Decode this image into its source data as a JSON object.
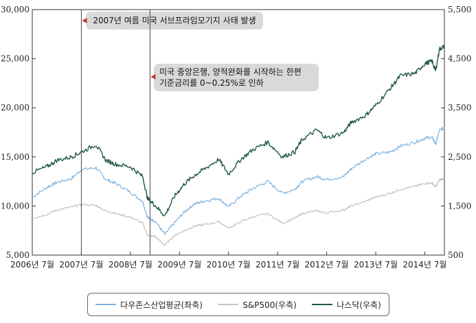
{
  "chart_data": {
    "type": "line",
    "left_axis": {
      "ticks": [
        "5,000",
        "10,000",
        "15,000",
        "20,000",
        "25,000",
        "30,000"
      ],
      "range": [
        5000,
        30000
      ]
    },
    "right_axis": {
      "ticks": [
        "500",
        "1,500",
        "2,500",
        "3,500",
        "4,500",
        "5,500"
      ],
      "range": [
        500,
        5500
      ]
    },
    "x_ticks": [
      "2006년 7월",
      "2007년 7월",
      "2008년 7월",
      "2009년 7월",
      "2010년 7월",
      "2011년 7월",
      "2012년 7월",
      "2013년 7월",
      "2014년 7월"
    ],
    "x_range": [
      2006.5,
      2014.9
    ],
    "annotations": [
      {
        "lines": [
          "2007년 여름 미국 서브프라임모기지 사태 발생"
        ],
        "x": 2007.5
      },
      {
        "lines": [
          "미국 중앙은행, 양적완화를 시작하는 한편",
          "기준금리를 0~0.25%로 인하"
        ],
        "x": 2008.9
      }
    ],
    "series": [
      {
        "name": "다우존스산업평균(좌축)",
        "axis": "left",
        "color": "#7fb2dd",
        "points": [
          [
            2006.5,
            10900
          ],
          [
            2006.8,
            11900
          ],
          [
            2007.0,
            12400
          ],
          [
            2007.3,
            12800
          ],
          [
            2007.5,
            13700
          ],
          [
            2007.8,
            13900
          ],
          [
            2008.0,
            12700
          ],
          [
            2008.2,
            12300
          ],
          [
            2008.5,
            11400
          ],
          [
            2008.75,
            10500
          ],
          [
            2008.85,
            8800
          ],
          [
            2009.0,
            8500
          ],
          [
            2009.2,
            7100
          ],
          [
            2009.4,
            8300
          ],
          [
            2009.6,
            9400
          ],
          [
            2009.8,
            10200
          ],
          [
            2010.0,
            10500
          ],
          [
            2010.3,
            10800
          ],
          [
            2010.5,
            9900
          ],
          [
            2010.75,
            11000
          ],
          [
            2011.0,
            11800
          ],
          [
            2011.3,
            12500
          ],
          [
            2011.6,
            11300
          ],
          [
            2011.85,
            11700
          ],
          [
            2012.0,
            12500
          ],
          [
            2012.3,
            13000
          ],
          [
            2012.5,
            12700
          ],
          [
            2012.85,
            13000
          ],
          [
            2013.0,
            13800
          ],
          [
            2013.3,
            14800
          ],
          [
            2013.5,
            15300
          ],
          [
            2013.8,
            15500
          ],
          [
            2014.0,
            16100
          ],
          [
            2014.3,
            16500
          ],
          [
            2014.5,
            16900
          ],
          [
            2014.65,
            17000
          ],
          [
            2014.72,
            16300
          ],
          [
            2014.8,
            17700
          ],
          [
            2014.9,
            18000
          ]
        ]
      },
      {
        "name": "S&P500(우축)",
        "axis": "right",
        "color": "#c4c4c4",
        "points": [
          [
            2006.5,
            1250
          ],
          [
            2006.8,
            1330
          ],
          [
            2007.0,
            1420
          ],
          [
            2007.3,
            1480
          ],
          [
            2007.5,
            1530
          ],
          [
            2007.8,
            1510
          ],
          [
            2008.0,
            1400
          ],
          [
            2008.2,
            1350
          ],
          [
            2008.5,
            1270
          ],
          [
            2008.75,
            1150
          ],
          [
            2008.85,
            900
          ],
          [
            2009.0,
            880
          ],
          [
            2009.2,
            700
          ],
          [
            2009.4,
            900
          ],
          [
            2009.6,
            1000
          ],
          [
            2009.8,
            1090
          ],
          [
            2010.0,
            1120
          ],
          [
            2010.3,
            1180
          ],
          [
            2010.5,
            1050
          ],
          [
            2010.75,
            1180
          ],
          [
            2011.0,
            1280
          ],
          [
            2011.3,
            1340
          ],
          [
            2011.6,
            1150
          ],
          [
            2011.85,
            1250
          ],
          [
            2012.0,
            1350
          ],
          [
            2012.3,
            1400
          ],
          [
            2012.5,
            1360
          ],
          [
            2012.85,
            1420
          ],
          [
            2013.0,
            1500
          ],
          [
            2013.3,
            1600
          ],
          [
            2013.5,
            1680
          ],
          [
            2013.8,
            1760
          ],
          [
            2014.0,
            1840
          ],
          [
            2014.3,
            1900
          ],
          [
            2014.5,
            1960
          ],
          [
            2014.65,
            1970
          ],
          [
            2014.72,
            1880
          ],
          [
            2014.8,
            2030
          ],
          [
            2014.9,
            2060
          ]
        ]
      },
      {
        "name": "나스닥(우축)",
        "axis": "right",
        "color": "#1f5a3c",
        "points": [
          [
            2006.5,
            2180
          ],
          [
            2006.8,
            2300
          ],
          [
            2007.0,
            2430
          ],
          [
            2007.3,
            2500
          ],
          [
            2007.5,
            2600
          ],
          [
            2007.8,
            2750
          ],
          [
            2008.0,
            2430
          ],
          [
            2008.2,
            2350
          ],
          [
            2008.5,
            2300
          ],
          [
            2008.75,
            2100
          ],
          [
            2008.85,
            1650
          ],
          [
            2009.0,
            1520
          ],
          [
            2009.2,
            1300
          ],
          [
            2009.4,
            1700
          ],
          [
            2009.6,
            1950
          ],
          [
            2009.8,
            2120
          ],
          [
            2010.0,
            2250
          ],
          [
            2010.3,
            2450
          ],
          [
            2010.5,
            2150
          ],
          [
            2010.75,
            2450
          ],
          [
            2011.0,
            2650
          ],
          [
            2011.3,
            2800
          ],
          [
            2011.6,
            2500
          ],
          [
            2011.85,
            2600
          ],
          [
            2012.0,
            2850
          ],
          [
            2012.3,
            3050
          ],
          [
            2012.5,
            2880
          ],
          [
            2012.85,
            3000
          ],
          [
            2013.0,
            3200
          ],
          [
            2013.3,
            3350
          ],
          [
            2013.5,
            3550
          ],
          [
            2013.8,
            3900
          ],
          [
            2014.0,
            4150
          ],
          [
            2014.3,
            4200
          ],
          [
            2014.5,
            4400
          ],
          [
            2014.65,
            4450
          ],
          [
            2014.72,
            4250
          ],
          [
            2014.8,
            4700
          ],
          [
            2014.9,
            4750
          ]
        ]
      }
    ]
  }
}
